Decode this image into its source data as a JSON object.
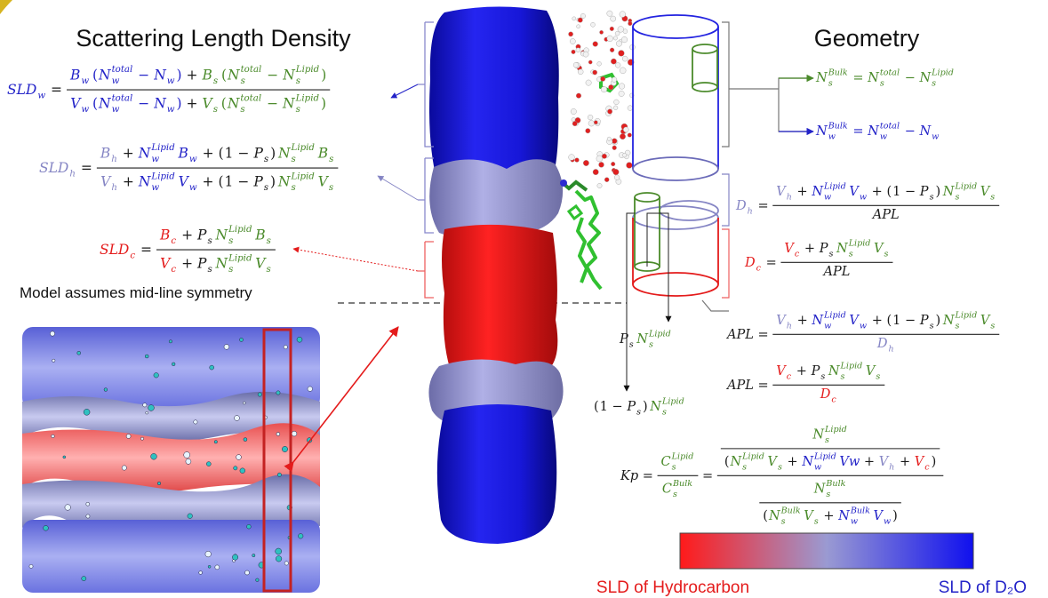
{
  "titles": {
    "left": "Scattering Length Density",
    "right": "Geometry"
  },
  "note": "Model assumes mid-line symmetry",
  "legend": {
    "low": "SLD of Hydrocarbon",
    "high": "SLD of D₂O"
  },
  "sld_equations": [
    [
      {
        "t": "SLD",
        "sub": "w",
        "color": "#2323c8"
      },
      {
        "t": "="
      },
      {
        "num": [
          {
            "t": "B",
            "sub": "w",
            "color": "#2323c8"
          },
          {
            "t": "(",
            "color": "#2323c8"
          },
          {
            "t": "N",
            "sub": "w",
            "sup": "total",
            "color": "#2323c8"
          },
          {
            "t": "−",
            "color": "#2323c8"
          },
          {
            "t": "N",
            "sub": "w",
            "color": "#2323c8"
          },
          {
            "t": ")",
            "color": "#2323c8"
          },
          {
            "t": "+"
          },
          {
            "t": "B",
            "sub": "s",
            "color": "#4a8a2a"
          },
          {
            "t": "(",
            "color": "#4a8a2a"
          },
          {
            "t": "N",
            "sub": "s",
            "sup": "total",
            "color": "#4a8a2a"
          },
          {
            "t": "−",
            "color": "#4a8a2a"
          },
          {
            "t": "N",
            "sub": "s",
            "sup": "Lipid",
            "color": "#4a8a2a"
          },
          {
            "t": ")",
            "color": "#4a8a2a"
          }
        ],
        "den": [
          {
            "t": "V",
            "sub": "w",
            "color": "#2323c8"
          },
          {
            "t": "(",
            "color": "#2323c8"
          },
          {
            "t": "N",
            "sub": "w",
            "sup": "total",
            "color": "#2323c8"
          },
          {
            "t": "−",
            "color": "#2323c8"
          },
          {
            "t": "N",
            "sub": "w",
            "color": "#2323c8"
          },
          {
            "t": ")",
            "color": "#2323c8"
          },
          {
            "t": "+"
          },
          {
            "t": "V",
            "sub": "s",
            "color": "#4a8a2a"
          },
          {
            "t": "(",
            "color": "#4a8a2a"
          },
          {
            "t": "N",
            "sub": "s",
            "sup": "total",
            "color": "#4a8a2a"
          },
          {
            "t": "−",
            "color": "#4a8a2a"
          },
          {
            "t": "N",
            "sub": "s",
            "sup": "Lipid",
            "color": "#4a8a2a"
          },
          {
            "t": ")",
            "color": "#4a8a2a"
          }
        ]
      }
    ],
    [
      {
        "t": "SLD",
        "sub": "h",
        "color": "#8585c4"
      },
      {
        "t": "="
      },
      {
        "num": [
          {
            "t": "B",
            "sub": "h",
            "color": "#8585c4"
          },
          {
            "t": "+"
          },
          {
            "t": "N",
            "sub": "w",
            "sup": "Lipid",
            "color": "#2323c8"
          },
          {
            "t": "B",
            "sub": "w",
            "color": "#2323c8"
          },
          {
            "t": "+"
          },
          {
            "t": "("
          },
          {
            "t": "1"
          },
          {
            "t": "−"
          },
          {
            "t": "P",
            "sub": "s"
          },
          {
            "t": ")"
          },
          {
            "t": "N",
            "sub": "s",
            "sup": "Lipid",
            "color": "#4a8a2a"
          },
          {
            "t": "B",
            "sub": "s",
            "color": "#4a8a2a"
          }
        ],
        "den": [
          {
            "t": "V",
            "sub": "h",
            "color": "#8585c4"
          },
          {
            "t": "+"
          },
          {
            "t": "N",
            "sub": "w",
            "sup": "Lipid",
            "color": "#2323c8"
          },
          {
            "t": "V",
            "sub": "w",
            "color": "#2323c8"
          },
          {
            "t": "+"
          },
          {
            "t": "("
          },
          {
            "t": "1"
          },
          {
            "t": "−"
          },
          {
            "t": "P",
            "sub": "s"
          },
          {
            "t": ")"
          },
          {
            "t": "N",
            "sub": "s",
            "sup": "Lipid",
            "color": "#4a8a2a"
          },
          {
            "t": "V",
            "sub": "s",
            "color": "#4a8a2a"
          }
        ]
      }
    ],
    [
      {
        "t": "SLD",
        "sub": "c",
        "color": "#e41b1b"
      },
      {
        "t": "="
      },
      {
        "num": [
          {
            "t": "B",
            "sub": "c",
            "color": "#e41b1b"
          },
          {
            "t": "+"
          },
          {
            "t": "P",
            "sub": "s"
          },
          {
            "t": "N",
            "sub": "s",
            "sup": "Lipid",
            "color": "#4a8a2a"
          },
          {
            "t": "B",
            "sub": "s",
            "color": "#4a8a2a"
          }
        ],
        "den": [
          {
            "t": "V",
            "sub": "c",
            "color": "#e41b1b"
          },
          {
            "t": "+"
          },
          {
            "t": "P",
            "sub": "s"
          },
          {
            "t": "N",
            "sub": "s",
            "sup": "Lipid",
            "color": "#4a8a2a"
          },
          {
            "t": "V",
            "sub": "s",
            "color": "#4a8a2a"
          }
        ]
      }
    ]
  ],
  "geometry_equations": [
    [
      {
        "t": "N",
        "sub": "s",
        "sup": "Bulk",
        "color": "#4a8a2a"
      },
      {
        "t": "=",
        "color": "#4a8a2a"
      },
      {
        "t": "N",
        "sub": "s",
        "sup": "total",
        "color": "#4a8a2a"
      },
      {
        "t": "−",
        "color": "#4a8a2a"
      },
      {
        "t": "N",
        "sub": "s",
        "sup": "Lipid",
        "color": "#4a8a2a"
      }
    ],
    [
      {
        "t": "N",
        "sub": "w",
        "sup": "Bulk",
        "color": "#2323c8"
      },
      {
        "t": "=",
        "color": "#2323c8"
      },
      {
        "t": "N",
        "sub": "w",
        "sup": "total",
        "color": "#2323c8"
      },
      {
        "t": "−",
        "color": "#2323c8"
      },
      {
        "t": "N",
        "sub": "w",
        "color": "#2323c8"
      }
    ],
    [
      {
        "t": "D",
        "sub": "h",
        "color": "#8585c4"
      },
      {
        "t": "="
      },
      {
        "num": [
          {
            "t": "V",
            "sub": "h",
            "color": "#8585c4"
          },
          {
            "t": "+"
          },
          {
            "t": "N",
            "sub": "w",
            "sup": "Lipid",
            "color": "#2323c8"
          },
          {
            "t": "V",
            "sub": "w",
            "color": "#2323c8"
          },
          {
            "t": "+"
          },
          {
            "t": "("
          },
          {
            "t": "1"
          },
          {
            "t": "−"
          },
          {
            "t": "P",
            "sub": "s"
          },
          {
            "t": ")"
          },
          {
            "t": "N",
            "sub": "s",
            "sup": "Lipid",
            "color": "#4a8a2a"
          },
          {
            "t": "V",
            "sub": "s",
            "color": "#4a8a2a"
          }
        ],
        "den": [
          {
            "t": "APL"
          }
        ]
      }
    ],
    [
      {
        "t": "D",
        "sub": "c",
        "color": "#e41b1b"
      },
      {
        "t": "="
      },
      {
        "num": [
          {
            "t": "V",
            "sub": "c",
            "color": "#e41b1b"
          },
          {
            "t": "+"
          },
          {
            "t": "P",
            "sub": "s"
          },
          {
            "t": "N",
            "sub": "s",
            "sup": "Lipid",
            "color": "#4a8a2a"
          },
          {
            "t": "V",
            "sub": "s",
            "color": "#4a8a2a"
          }
        ],
        "den": [
          {
            "t": "APL"
          }
        ]
      }
    ],
    [
      {
        "t": "APL"
      },
      {
        "t": "="
      },
      {
        "num": [
          {
            "t": "V",
            "sub": "h",
            "color": "#8585c4"
          },
          {
            "t": "+"
          },
          {
            "t": "N",
            "sub": "w",
            "sup": "Lipid",
            "color": "#2323c8"
          },
          {
            "t": "V",
            "sub": "w",
            "color": "#2323c8"
          },
          {
            "t": "+"
          },
          {
            "t": "("
          },
          {
            "t": "1"
          },
          {
            "t": "−"
          },
          {
            "t": "P",
            "sub": "s"
          },
          {
            "t": ")"
          },
          {
            "t": "N",
            "sub": "s",
            "sup": "Lipid",
            "color": "#4a8a2a"
          },
          {
            "t": "V",
            "sub": "s",
            "color": "#4a8a2a"
          }
        ],
        "den": [
          {
            "t": "D",
            "sub": "h",
            "color": "#8585c4"
          }
        ]
      }
    ],
    [
      {
        "t": "APL"
      },
      {
        "t": "="
      },
      {
        "num": [
          {
            "t": "V",
            "sub": "c",
            "color": "#e41b1b"
          },
          {
            "t": "+"
          },
          {
            "t": "P",
            "sub": "s"
          },
          {
            "t": "N",
            "sub": "s",
            "sup": "Lipid",
            "color": "#4a8a2a"
          },
          {
            "t": "V",
            "sub": "s",
            "color": "#4a8a2a"
          }
        ],
        "den": [
          {
            "t": "D",
            "sub": "c",
            "color": "#e41b1b"
          }
        ]
      }
    ],
    [
      {
        "t": "Kp"
      },
      {
        "t": "="
      },
      {
        "num": [
          {
            "t": "C",
            "sub": "s",
            "sup": "Lipid",
            "color": "#4a8a2a"
          }
        ],
        "den": [
          {
            "t": "C",
            "sub": "s",
            "sup": "Bulk",
            "color": "#4a8a2a"
          }
        ]
      },
      {
        "t": "="
      },
      {
        "num": [
          {
            "num": [
              {
                "t": "N",
                "sub": "s",
                "sup": "Lipid",
                "color": "#4a8a2a"
              }
            ],
            "den": [
              {
                "t": "("
              },
              {
                "t": "N",
                "sub": "s",
                "sup": "Lipid",
                "color": "#4a8a2a"
              },
              {
                "t": "V",
                "sub": "s",
                "color": "#4a8a2a"
              },
              {
                "t": "+"
              },
              {
                "t": "N",
                "sub": "w",
                "sup": "Lipid",
                "color": "#2323c8"
              },
              {
                "t": "Vw",
                "color": "#2323c8"
              },
              {
                "t": "+"
              },
              {
                "t": "V",
                "sub": "h",
                "color": "#8585c4"
              },
              {
                "t": "+"
              },
              {
                "t": "V",
                "sub": "c",
                "color": "#e41b1b"
              },
              {
                "t": ")"
              }
            ]
          }
        ],
        "den": [
          {
            "num": [
              {
                "t": "N",
                "sub": "s",
                "sup": "Bulk",
                "color": "#4a8a2a"
              }
            ],
            "den": [
              {
                "t": "("
              },
              {
                "t": "N",
                "sub": "s",
                "sup": "Bulk",
                "color": "#4a8a2a"
              },
              {
                "t": "V",
                "sub": "s",
                "color": "#4a8a2a"
              },
              {
                "t": "+"
              },
              {
                "t": "N",
                "sub": "w",
                "sup": "Bulk",
                "color": "#2323c8"
              },
              {
                "t": "V",
                "sub": "w",
                "color": "#2323c8"
              },
              {
                "t": ")"
              }
            ]
          }
        ]
      }
    ]
  ],
  "lipid_labels": [
    [
      {
        "t": "P",
        "sub": "s"
      },
      {
        "t": "N",
        "sub": "s",
        "sup": "Lipid",
        "color": "#4a8a2a"
      }
    ],
    [
      {
        "t": "("
      },
      {
        "t": "1"
      },
      {
        "t": "−"
      },
      {
        "t": "P",
        "sub": "s"
      },
      {
        "t": ")"
      },
      {
        "t": "N",
        "sub": "s",
        "sup": "Lipid",
        "color": "#4a8a2a"
      }
    ]
  ]
}
